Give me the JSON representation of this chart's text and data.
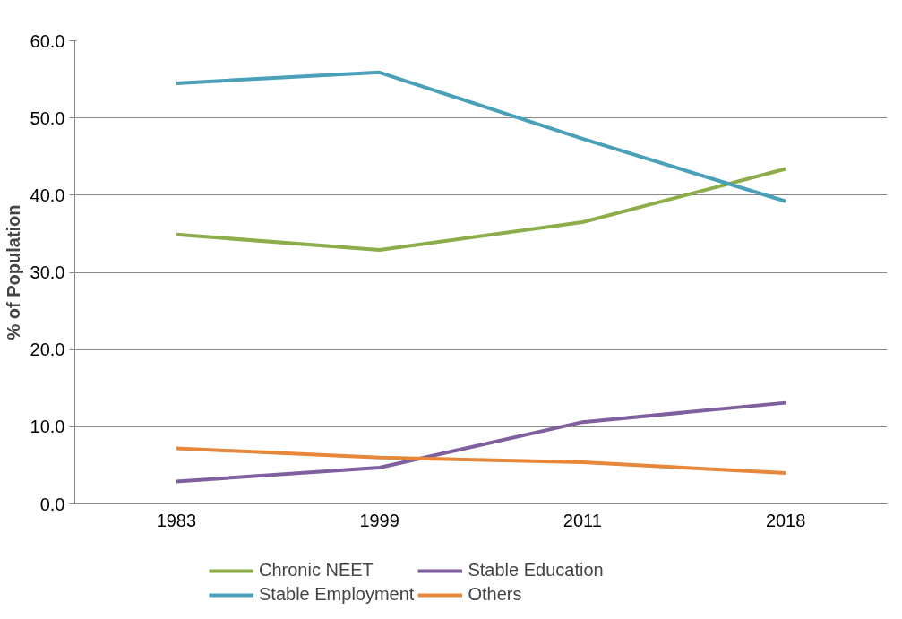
{
  "chart_data": {
    "type": "line",
    "ylabel": "% of Population",
    "categories": [
      "1983",
      "1999",
      "2011",
      "2018"
    ],
    "series": [
      {
        "name": "Chronic NEET",
        "color": "#8cad4a",
        "values": [
          34.9,
          32.9,
          36.5,
          43.4
        ]
      },
      {
        "name": "Stable Employment",
        "color": "#4aa0b8",
        "values": [
          54.5,
          55.9,
          47.3,
          39.2
        ]
      },
      {
        "name": "Stable Education",
        "color": "#7f5f9e",
        "values": [
          2.9,
          4.7,
          10.6,
          13.1
        ]
      },
      {
        "name": "Others",
        "color": "#e6873a",
        "values": [
          7.2,
          6.0,
          5.4,
          4.0
        ]
      }
    ],
    "ylim": [
      0,
      60
    ],
    "yticks": [
      {
        "value": 0,
        "label": "0.0"
      },
      {
        "value": 10,
        "label": "10.0"
      },
      {
        "value": 20,
        "label": "20.0"
      },
      {
        "value": 30,
        "label": "30.0"
      },
      {
        "value": 40,
        "label": "40.0"
      },
      {
        "value": 50,
        "label": "50.0"
      },
      {
        "value": 60,
        "label": "60.0"
      }
    ],
    "grid": "y",
    "legend": "bottom",
    "marker": "none",
    "line_style": "solid"
  }
}
